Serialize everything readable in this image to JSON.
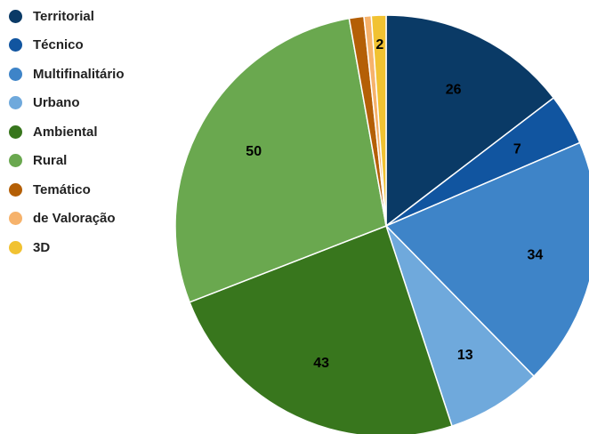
{
  "chart_data": {
    "type": "pie",
    "categories": [
      "Territorial",
      "Técnico",
      "Multifinalitário",
      "Urbano",
      "Ambiental",
      "Rural",
      "Temático",
      "de Valoração",
      "3D"
    ],
    "values": [
      26,
      7,
      34,
      13,
      43,
      50,
      2,
      1,
      2
    ],
    "data_labels": [
      "26",
      "7",
      "34",
      "13",
      "43",
      "50",
      "",
      "",
      "2"
    ],
    "colors": [
      "#0a3a66",
      "#1155a0",
      "#3e84c8",
      "#6fa9dc",
      "#38761d",
      "#6aa84f",
      "#b45f06",
      "#f6b26b",
      "#f1c232"
    ],
    "legend_position": "left",
    "start": "top, clockwise"
  }
}
